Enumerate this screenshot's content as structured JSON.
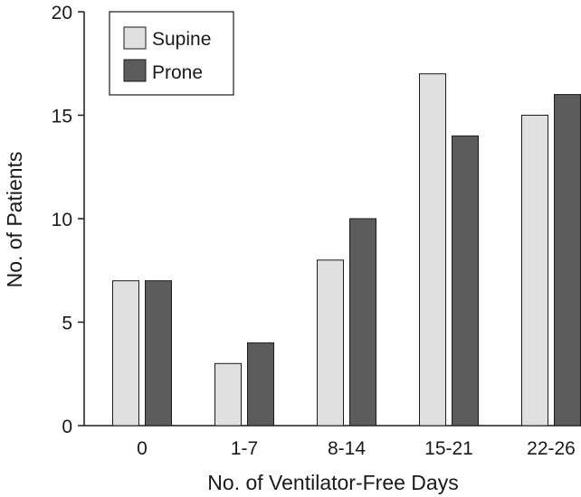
{
  "chart_data": {
    "type": "bar",
    "title": "",
    "xlabel": "No. of Ventilator-Free Days",
    "ylabel": "No. of Patients",
    "categories": [
      "0",
      "1-7",
      "8-14",
      "15-21",
      "22-26"
    ],
    "series": [
      {
        "name": "Supine",
        "color": "#e0e0e0",
        "values": [
          7,
          3,
          8,
          17,
          15
        ]
      },
      {
        "name": "Prone",
        "color": "#5c5c5c",
        "values": [
          7,
          4,
          10,
          14,
          16
        ]
      }
    ],
    "ylim": [
      0,
      20
    ],
    "yticks": [
      0,
      5,
      10,
      15,
      20
    ],
    "grid": false,
    "legend_position": "top-left"
  }
}
